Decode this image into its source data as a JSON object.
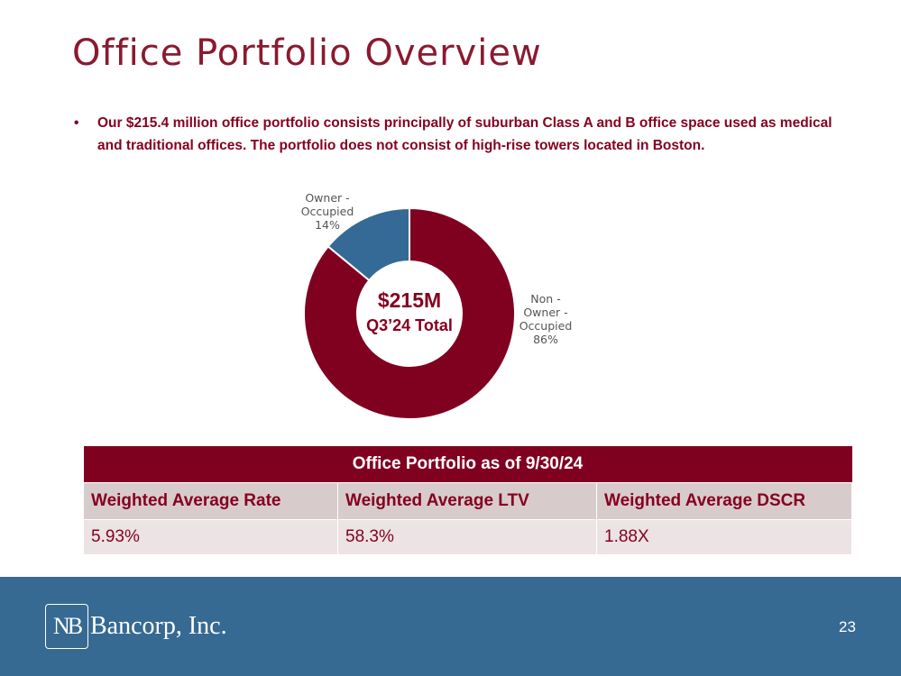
{
  "title": "Office Portfolio Overview",
  "bullet": "Our $215.4 million office portfolio consists principally of suburban Class A and B office space used as medical and traditional offices. The portfolio does not consist of high-rise towers located in Boston.",
  "chart_data": {
    "type": "pie",
    "variant": "donut",
    "series": [
      {
        "name": "Non - Owner - Occupied",
        "value": 86,
        "label": "86%",
        "color": "#800020"
      },
      {
        "name": "Owner - Occupied",
        "value": 14,
        "label": "14%",
        "color": "#356a97"
      }
    ],
    "center_label": {
      "value": "$215M",
      "caption": "Q3’24 Total"
    }
  },
  "labels": {
    "owner": [
      "Owner -",
      "Occupied",
      "14%"
    ],
    "non_owner": [
      "Non -",
      "Owner -",
      "Occupied",
      "86%"
    ]
  },
  "table": {
    "title": "Office Portfolio as of 9/30/24",
    "headers": [
      "Weighted Average Rate",
      "Weighted Average LTV",
      "Weighted Average DSCR"
    ],
    "values": [
      "5.93%",
      "58.3%",
      "1.88X"
    ]
  },
  "footer": {
    "logo_mark": "NB",
    "logo_text": "Bancorp, Inc.",
    "page_number": "23"
  }
}
